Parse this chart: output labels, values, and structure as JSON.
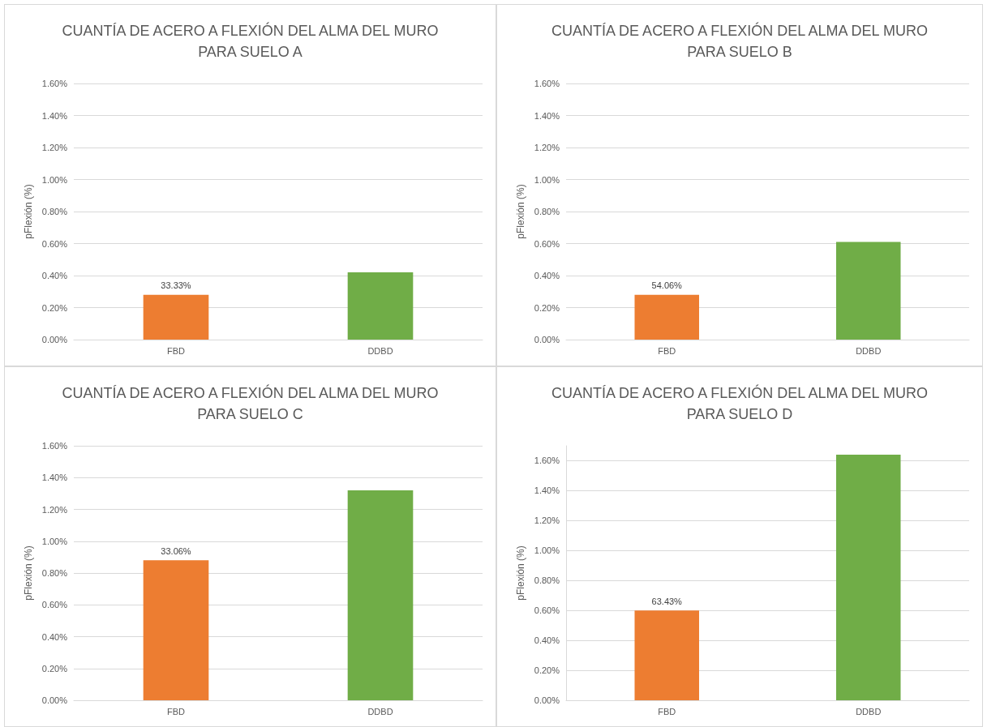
{
  "chart_data": [
    {
      "type": "bar",
      "title": "CUANTÍA DE ACERO A FLEXIÓN DEL ALMA DEL MURO\nPARA SUELO A",
      "ylabel": "pFlexión (%)",
      "categories": [
        "FBD",
        "DDBD"
      ],
      "values": [
        0.28,
        0.42
      ],
      "colors": [
        "#ed7d31",
        "#70ad47"
      ],
      "ylim": [
        0,
        1.6
      ],
      "yticks": [
        {
          "value": 0,
          "label": "0.00%"
        },
        {
          "value": 0.2,
          "label": "0.20%"
        },
        {
          "value": 0.4,
          "label": "0.40%"
        },
        {
          "value": 0.6,
          "label": "0.60%"
        },
        {
          "value": 0.8,
          "label": "0.80%"
        },
        {
          "value": 1.0,
          "label": "1.00%"
        },
        {
          "value": 1.2,
          "label": "1.20%"
        },
        {
          "value": 1.4,
          "label": "1.40%"
        },
        {
          "value": 1.6,
          "label": "1.60%"
        }
      ],
      "grid": "y",
      "annotations": [
        {
          "text": "33.33%",
          "x": "FBD",
          "y": 0.28
        }
      ]
    },
    {
      "type": "bar",
      "title": "CUANTÍA DE ACERO A FLEXIÓN DEL ALMA DEL MURO\nPARA SUELO B",
      "ylabel": "pFlexión (%)",
      "categories": [
        "FBD",
        "DDBD"
      ],
      "values": [
        0.28,
        0.61
      ],
      "colors": [
        "#ed7d31",
        "#70ad47"
      ],
      "ylim": [
        0,
        1.6
      ],
      "yticks": [
        {
          "value": 0,
          "label": "0.00%"
        },
        {
          "value": 0.2,
          "label": "0.20%"
        },
        {
          "value": 0.4,
          "label": "0.40%"
        },
        {
          "value": 0.6,
          "label": "0.60%"
        },
        {
          "value": 0.8,
          "label": "0.80%"
        },
        {
          "value": 1.0,
          "label": "1.00%"
        },
        {
          "value": 1.2,
          "label": "1.20%"
        },
        {
          "value": 1.4,
          "label": "1.40%"
        },
        {
          "value": 1.6,
          "label": "1.60%"
        }
      ],
      "grid": "y",
      "annotations": [
        {
          "text": "54.06%",
          "x": "FBD",
          "y": 0.28
        }
      ]
    },
    {
      "type": "bar",
      "title": "CUANTÍA DE ACERO A FLEXIÓN DEL ALMA DEL MURO\nPARA SUELO C",
      "ylabel": "pFlexión (%)",
      "categories": [
        "FBD",
        "DDBD"
      ],
      "values": [
        0.88,
        1.32
      ],
      "colors": [
        "#ed7d31",
        "#70ad47"
      ],
      "ylim": [
        0,
        1.6
      ],
      "yticks": [
        {
          "value": 0,
          "label": "0.00%"
        },
        {
          "value": 0.2,
          "label": "0.20%"
        },
        {
          "value": 0.4,
          "label": "0.40%"
        },
        {
          "value": 0.6,
          "label": "0.60%"
        },
        {
          "value": 0.8,
          "label": "0.80%"
        },
        {
          "value": 1.0,
          "label": "1.00%"
        },
        {
          "value": 1.2,
          "label": "1.20%"
        },
        {
          "value": 1.4,
          "label": "1.40%"
        },
        {
          "value": 1.6,
          "label": "1.60%"
        }
      ],
      "grid": "y",
      "annotations": [
        {
          "text": "33.06%",
          "x": "FBD",
          "y": 0.88
        }
      ]
    },
    {
      "type": "bar",
      "title": "CUANTÍA DE ACERO A FLEXIÓN DEL ALMA DEL MURO\nPARA SUELO D",
      "ylabel": "pFlexión (%)",
      "categories": [
        "FBD",
        "DDBD"
      ],
      "values": [
        0.6,
        1.64
      ],
      "colors": [
        "#ed7d31",
        "#70ad47"
      ],
      "ylim": [
        0,
        1.7
      ],
      "yticks": [
        {
          "value": 0,
          "label": "0.00%"
        },
        {
          "value": 0.2,
          "label": "0.20%"
        },
        {
          "value": 0.4,
          "label": "0.40%"
        },
        {
          "value": 0.6,
          "label": "0.60%"
        },
        {
          "value": 0.8,
          "label": "0.80%"
        },
        {
          "value": 1.0,
          "label": "1.00%"
        },
        {
          "value": 1.2,
          "label": "1.20%"
        },
        {
          "value": 1.4,
          "label": "1.40%"
        },
        {
          "value": 1.6,
          "label": "1.60%"
        }
      ],
      "grid": "y",
      "annotations": [
        {
          "text": "63.43%",
          "x": "FBD",
          "y": 0.6
        }
      ]
    }
  ]
}
